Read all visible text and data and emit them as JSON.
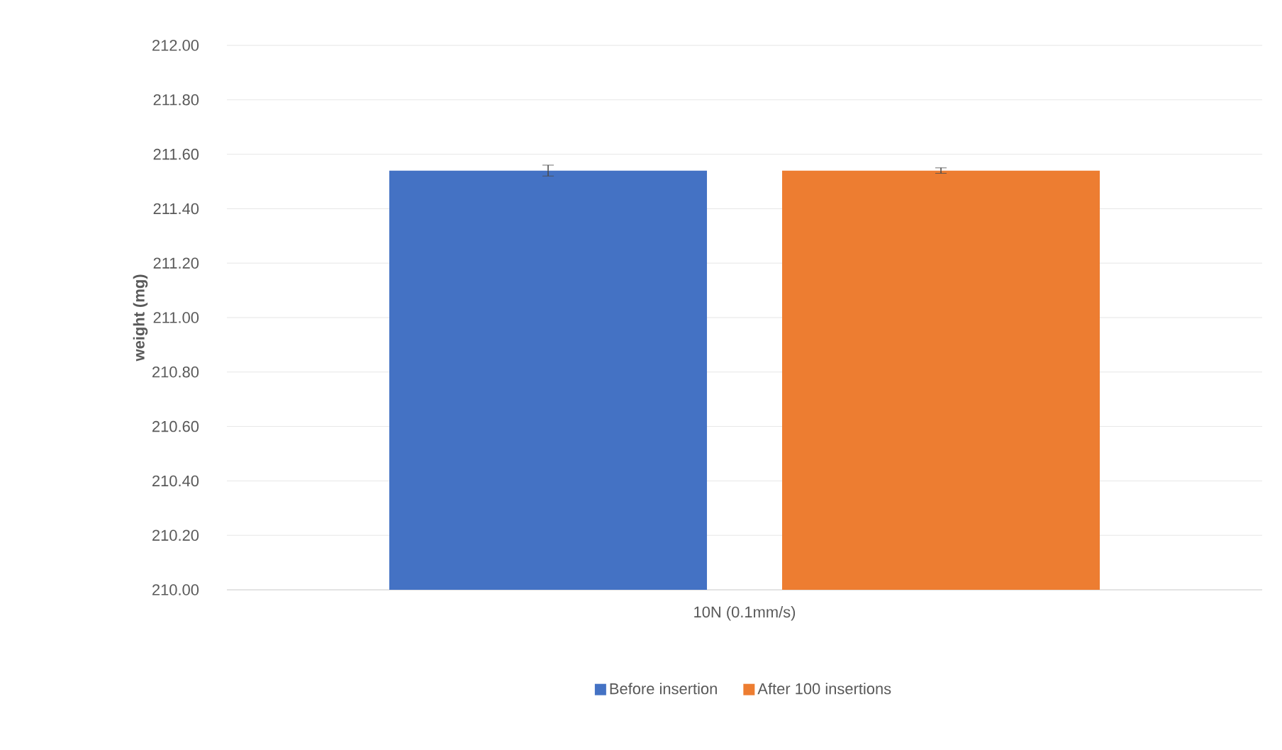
{
  "chart_data": {
    "type": "bar",
    "ylabel": "weight (mg)",
    "categories": [
      "10N (0.1mm/s)"
    ],
    "series": [
      {
        "name": "Before insertion",
        "color": "#4472c4",
        "values": [
          211.54
        ],
        "errors": [
          0.02
        ]
      },
      {
        "name": "After 100 insertions",
        "color": "#ed7d31",
        "values": [
          211.54
        ],
        "errors": [
          0.01
        ]
      }
    ],
    "ylim": [
      210,
      212
    ],
    "yticks": [
      {
        "value": 210,
        "label": "210.00"
      },
      {
        "value": 210.2,
        "label": "210.20"
      },
      {
        "value": 210.4,
        "label": "210.40"
      },
      {
        "value": 210.6,
        "label": "210.60"
      },
      {
        "value": 210.8,
        "label": "210.80"
      },
      {
        "value": 211,
        "label": "211.00"
      },
      {
        "value": 211.2,
        "label": "211.20"
      },
      {
        "value": 211.4,
        "label": "211.40"
      },
      {
        "value": 211.6,
        "label": "211.60"
      },
      {
        "value": 211.8,
        "label": "211.80"
      },
      {
        "value": 212,
        "label": "212.00"
      }
    ],
    "grid": "y",
    "legend": "bottom"
  }
}
